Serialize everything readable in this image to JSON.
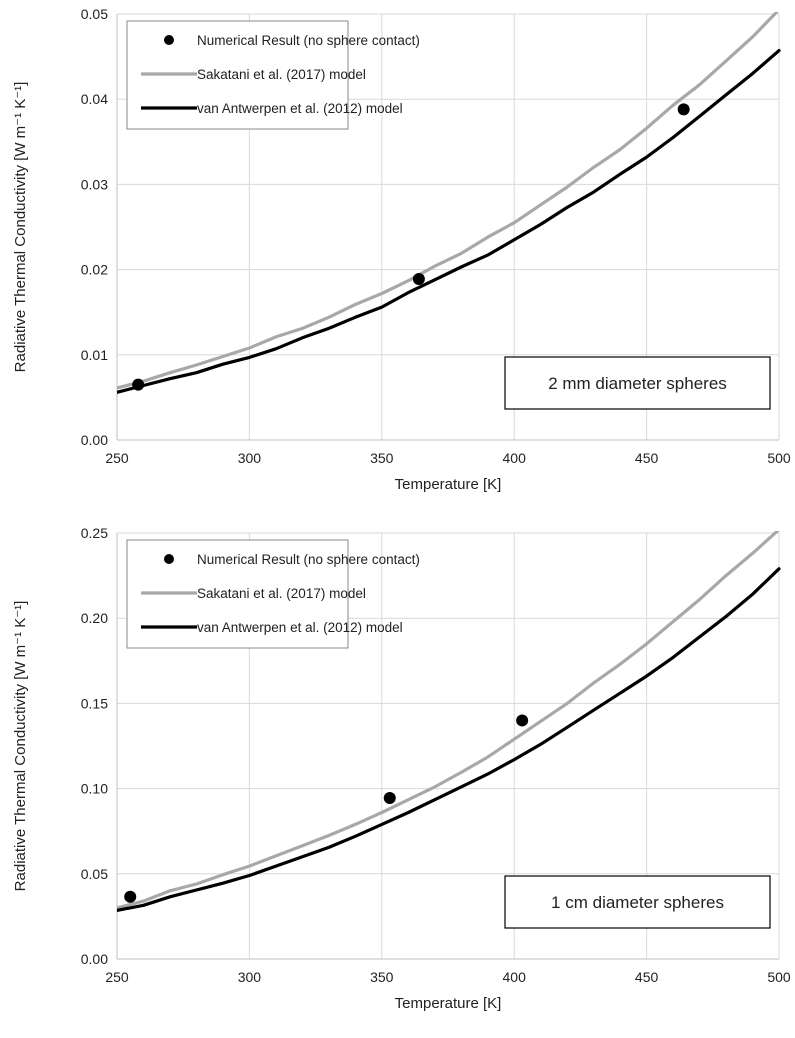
{
  "colors": {
    "sakatani": "#a8a8a8",
    "antwerpen": "#000000",
    "numerical": "#000000",
    "grid": "#d9d9d9"
  },
  "chart_data": [
    {
      "type": "line",
      "xlabel": "Temperature  [K]",
      "ylabel": "Radiative Thermal Conductivity  [W m⁻¹ K⁻¹]",
      "xlim": [
        250,
        500
      ],
      "ylim": [
        0,
        0.05
      ],
      "xticks": [
        250,
        300,
        350,
        400,
        450,
        500
      ],
      "xtick_labels": [
        "250",
        "300",
        "350",
        "400",
        "450",
        "500"
      ],
      "yticks": [
        0,
        0.01,
        0.02,
        0.03,
        0.04,
        0.05
      ],
      "ytick_labels": [
        "0.00",
        "0.01",
        "0.02",
        "0.03",
        "0.04",
        "0.05"
      ],
      "grid": true,
      "legend_position": "top-left",
      "annotation": "2 mm diameter spheres",
      "series": [
        {
          "name": "Numerical Result (no sphere contact)",
          "kind": "scatter",
          "color": "#000000",
          "x": [
            258,
            364,
            464
          ],
          "y": [
            0.0065,
            0.0189,
            0.0388
          ]
        },
        {
          "name": "Sakatani et al. (2017) model",
          "kind": "line",
          "color": "#a8a8a8",
          "x": [
            250,
            260,
            270,
            280,
            290,
            300,
            310,
            320,
            330,
            340,
            350,
            360,
            370,
            380,
            390,
            400,
            410,
            420,
            430,
            440,
            450,
            460,
            470,
            480,
            490,
            500
          ],
          "y": [
            0.0061,
            0.0069,
            0.0079,
            0.0088,
            0.0098,
            0.0108,
            0.0121,
            0.0131,
            0.0144,
            0.0159,
            0.0172,
            0.0187,
            0.0204,
            0.0219,
            0.0238,
            0.0255,
            0.0276,
            0.0297,
            0.032,
            0.0341,
            0.0366,
            0.0393,
            0.0417,
            0.0445,
            0.0473,
            0.0505
          ]
        },
        {
          "name": "van Antwerpen et al. (2012) model",
          "kind": "line",
          "color": "#000000",
          "x": [
            250,
            260,
            270,
            280,
            290,
            300,
            310,
            320,
            330,
            340,
            350,
            360,
            370,
            380,
            390,
            400,
            410,
            420,
            430,
            440,
            450,
            460,
            470,
            480,
            490,
            500
          ],
          "y": [
            0.0056,
            0.0064,
            0.0072,
            0.0079,
            0.0089,
            0.0097,
            0.0107,
            0.012,
            0.0131,
            0.0144,
            0.0156,
            0.0173,
            0.0188,
            0.0203,
            0.0217,
            0.0235,
            0.0253,
            0.0273,
            0.0291,
            0.0312,
            0.0332,
            0.0355,
            0.038,
            0.0405,
            0.043,
            0.0457
          ]
        }
      ]
    },
    {
      "type": "line",
      "xlabel": "Temperature  [K]",
      "ylabel": "Radiative Thermal Conductivity  [W m⁻¹ K⁻¹]",
      "xlim": [
        250,
        500
      ],
      "ylim": [
        0,
        0.25
      ],
      "xticks": [
        250,
        300,
        350,
        400,
        450,
        500
      ],
      "xtick_labels": [
        "250",
        "300",
        "350",
        "400",
        "450",
        "500"
      ],
      "yticks": [
        0,
        0.05,
        0.1,
        0.15,
        0.2,
        0.25
      ],
      "ytick_labels": [
        "0.00",
        "0.05",
        "0.10",
        "0.15",
        "0.20",
        "0.25"
      ],
      "grid": true,
      "legend_position": "top-left",
      "annotation": "1 cm diameter spheres",
      "series": [
        {
          "name": "Numerical Result (no sphere contact)",
          "kind": "scatter",
          "color": "#000000",
          "x": [
            255,
            353,
            403
          ],
          "y": [
            0.0365,
            0.0945,
            0.14
          ]
        },
        {
          "name": "Sakatani et al. (2017) model",
          "kind": "line",
          "color": "#a8a8a8",
          "x": [
            250,
            260,
            270,
            280,
            290,
            300,
            310,
            320,
            330,
            340,
            350,
            360,
            370,
            380,
            390,
            400,
            410,
            420,
            430,
            440,
            450,
            460,
            470,
            480,
            490,
            500
          ],
          "y": [
            0.03,
            0.034,
            0.04,
            0.044,
            0.0495,
            0.0545,
            0.0605,
            0.0665,
            0.0725,
            0.079,
            0.086,
            0.0935,
            0.101,
            0.1095,
            0.1185,
            0.129,
            0.1395,
            0.15,
            0.162,
            0.173,
            0.185,
            0.198,
            0.211,
            0.225,
            0.238,
            0.252
          ]
        },
        {
          "name": "van Antwerpen et al. (2012) model",
          "kind": "line",
          "color": "#000000",
          "x": [
            250,
            260,
            270,
            280,
            290,
            300,
            310,
            320,
            330,
            340,
            350,
            360,
            370,
            380,
            390,
            400,
            410,
            420,
            430,
            440,
            450,
            460,
            470,
            480,
            490,
            500
          ],
          "y": [
            0.0285,
            0.0315,
            0.0365,
            0.0405,
            0.0445,
            0.049,
            0.0545,
            0.06,
            0.0655,
            0.072,
            0.079,
            0.086,
            0.0935,
            0.101,
            0.1085,
            0.117,
            0.126,
            0.136,
            0.146,
            0.156,
            0.166,
            0.177,
            0.189,
            0.201,
            0.214,
            0.229
          ]
        }
      ]
    }
  ]
}
